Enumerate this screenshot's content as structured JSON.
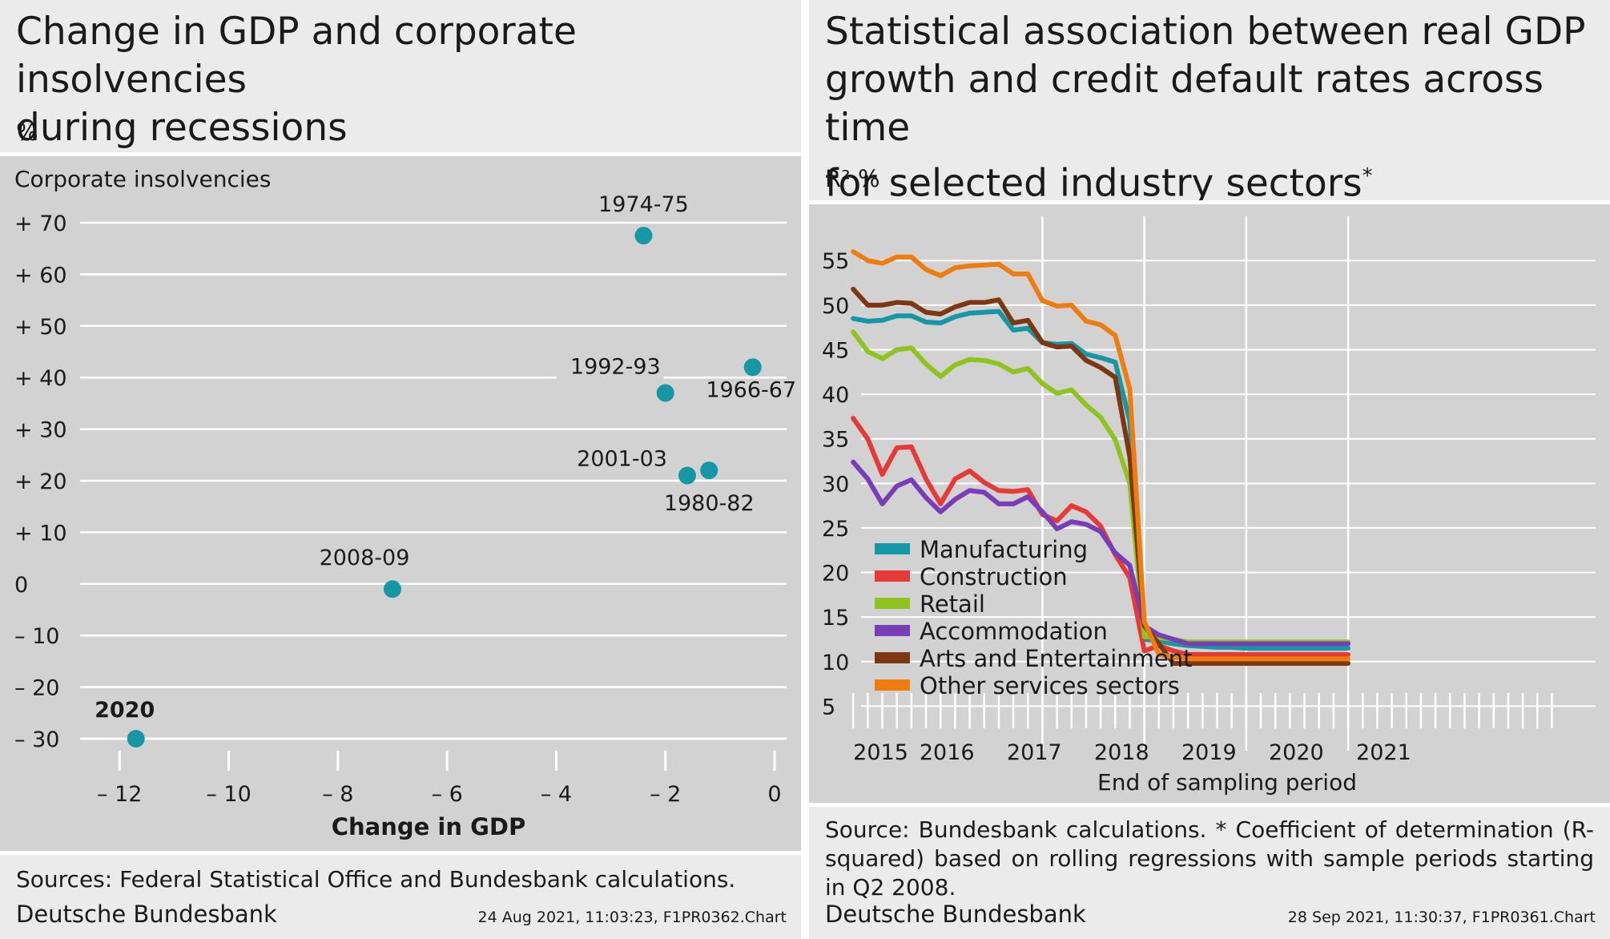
{
  "left": {
    "title_line1": "Change in GDP and corporate insolvencies",
    "title_line2": "during recessions",
    "unit": "%",
    "sources": "Sources: Federal Statistical Office and Bundesbank calculations.",
    "org": "Deutsche Bundesbank",
    "stamp": "24 Aug 2021, 11:03:23, F1PR0362.Chart"
  },
  "right": {
    "title_line1": "Statistical association between real GDP",
    "title_line2": "growth and credit default rates across time",
    "title_line3": "for selected industry sectors",
    "title_mark": "*",
    "unit": "R²  %",
    "sources": "Source: Bundesbank calculations. * Coefficient of determination (R-squared) based on rolling regressions with sample periods starting in Q2 2008.",
    "org": "Deutsche Bundesbank",
    "stamp": "28 Sep 2021, 11:30:37, F1PR0361.Chart"
  },
  "chart_data": [
    {
      "type": "scatter",
      "xlabel": "Change in GDP",
      "ylabel": "Corporate insolvencies",
      "xlim": [
        -12.4,
        0
      ],
      "ylim": [
        -30,
        70
      ],
      "xticks": [
        -12,
        -10,
        -8,
        -6,
        -4,
        -2,
        0
      ],
      "xtick_labels": [
        "– 12",
        "– 10",
        "– 8",
        "– 6",
        "– 4",
        "– 2",
        "0"
      ],
      "yticks": [
        70,
        60,
        50,
        40,
        30,
        20,
        10,
        0,
        -10,
        -20,
        -30
      ],
      "ytick_labels": [
        "+ 70",
        "+ 60",
        "+ 50",
        "+ 40",
        "+ 30",
        "+ 20",
        "+ 10",
        "0",
        "– 10",
        "– 20",
        "– 30"
      ],
      "grid": "horizontal",
      "color": "#1597a6",
      "points": [
        {
          "label": "1974-75",
          "x": -2.4,
          "y": 67.5
        },
        {
          "label": "1966-67",
          "x": -0.4,
          "y": 42
        },
        {
          "label": "1992-93",
          "x": -2.0,
          "y": 37
        },
        {
          "label": "2001-03",
          "x": -1.6,
          "y": 21
        },
        {
          "label": "1980-82",
          "x": -1.2,
          "y": 22
        },
        {
          "label": "2008-09",
          "x": -7.0,
          "y": -1
        },
        {
          "label": "2020",
          "x": -11.7,
          "y": -30,
          "bold": true
        }
      ]
    },
    {
      "type": "line",
      "xlabel": "End of sampling period",
      "ylabel": "R²",
      "xlim": [
        2014.875,
        2021.375
      ],
      "ylim": [
        0,
        57
      ],
      "yticks": [
        5,
        10,
        15,
        20,
        25,
        30,
        35,
        40,
        45,
        50,
        55
      ],
      "x_tick_labels": [
        {
          "x": 2015.0,
          "label": "2015"
        },
        {
          "x": 2015.75,
          "label": "2016"
        },
        {
          "x": 2016.5,
          "label": "2017"
        },
        {
          "x": 2017.25,
          "label": "2018"
        },
        {
          "x": 2018.0,
          "label": "2019"
        },
        {
          "x": 2018.75,
          "label": "2020"
        },
        {
          "x": 2019.5,
          "label": "2021"
        }
      ],
      "x": [
        2015.0,
        2015.125,
        2015.25,
        2015.375,
        2015.5,
        2015.625,
        2015.75,
        2015.875,
        2016.0,
        2016.125,
        2016.25,
        2016.375,
        2016.5,
        2016.625,
        2016.75,
        2016.875,
        2017.0,
        2017.125,
        2017.25,
        2017.375,
        2017.5,
        2017.625,
        2017.75,
        2017.875,
        2018.0,
        2018.125,
        2018.25,
        2018.375,
        2018.5,
        2018.625,
        2018.75,
        2018.875,
        2019.0,
        2019.125,
        2019.25
      ],
      "legend_position": "bottom-left",
      "series": [
        {
          "name": "Manufacturing",
          "color": "#1597a6",
          "values": [
            48.5,
            48.2,
            48.3,
            48.8,
            48.8,
            48.1,
            48.0,
            48.7,
            49.1,
            49.2,
            49.3,
            47.2,
            47.4,
            45.8,
            45.6,
            45.7,
            44.5,
            44.1,
            43.6,
            37.0,
            12.5,
            12.3,
            12.0,
            11.8,
            11.7,
            11.6,
            11.6,
            11.5,
            11.5,
            11.5,
            11.5,
            11.5,
            11.5,
            11.5,
            11.5
          ]
        },
        {
          "name": "Construction",
          "color": "#e53a36",
          "values": [
            37.3,
            35.0,
            31.0,
            34.0,
            34.1,
            30.5,
            27.7,
            30.5,
            31.4,
            30.1,
            29.2,
            29.1,
            29.3,
            26.5,
            25.8,
            27.5,
            26.8,
            25.2,
            22.0,
            19.4,
            11.2,
            11.8,
            11.2,
            10.8,
            10.8,
            10.8,
            10.8,
            10.8,
            10.8,
            10.8,
            10.8,
            10.8,
            10.8,
            10.8,
            10.8
          ]
        },
        {
          "name": "Retail",
          "color": "#8fc31f",
          "values": [
            47.0,
            44.8,
            44.0,
            45.0,
            45.2,
            43.4,
            42.0,
            43.3,
            43.9,
            43.8,
            43.4,
            42.5,
            42.9,
            41.2,
            40.1,
            40.5,
            38.8,
            37.4,
            34.9,
            30.0,
            12.8,
            12.7,
            12.5,
            12.2,
            12.2,
            12.2,
            12.2,
            12.2,
            12.2,
            12.2,
            12.2,
            12.2,
            12.2,
            12.2,
            12.2
          ]
        },
        {
          "name": "Accommodation",
          "color": "#7a3db8",
          "values": [
            32.4,
            30.5,
            27.7,
            29.7,
            30.4,
            28.4,
            26.8,
            28.2,
            29.2,
            29.0,
            27.7,
            27.7,
            28.5,
            26.8,
            24.9,
            25.7,
            25.4,
            24.6,
            22.2,
            20.8,
            14.0,
            13.0,
            12.5,
            12.0,
            12.0,
            12.0,
            12.0,
            12.0,
            12.0,
            12.0,
            12.0,
            12.0,
            12.0,
            12.0,
            12.0
          ]
        },
        {
          "name": "Arts and Entertainment",
          "color": "#7d3711",
          "values": [
            51.8,
            50.0,
            50.0,
            50.3,
            50.2,
            49.2,
            49.0,
            49.8,
            50.3,
            50.3,
            50.6,
            48.0,
            48.3,
            45.8,
            45.3,
            45.4,
            43.8,
            43.0,
            41.9,
            33.0,
            14.0,
            12.0,
            9.8,
            9.8,
            9.8,
            9.8,
            9.8,
            9.8,
            9.8,
            9.8,
            9.8,
            9.8,
            9.8,
            9.8,
            9.8
          ]
        },
        {
          "name": "Other services sectors",
          "color": "#ee7d10",
          "values": [
            56.0,
            55.0,
            54.7,
            55.4,
            55.4,
            54.0,
            53.3,
            54.2,
            54.4,
            54.5,
            54.6,
            53.5,
            53.5,
            50.5,
            49.9,
            50.0,
            48.2,
            47.8,
            46.6,
            40.6,
            14.5,
            10.8,
            10.5,
            10.3,
            10.3,
            10.3,
            10.3,
            10.3,
            10.3,
            10.3,
            10.3,
            10.3,
            10.3,
            10.3,
            10.3
          ]
        }
      ]
    }
  ]
}
